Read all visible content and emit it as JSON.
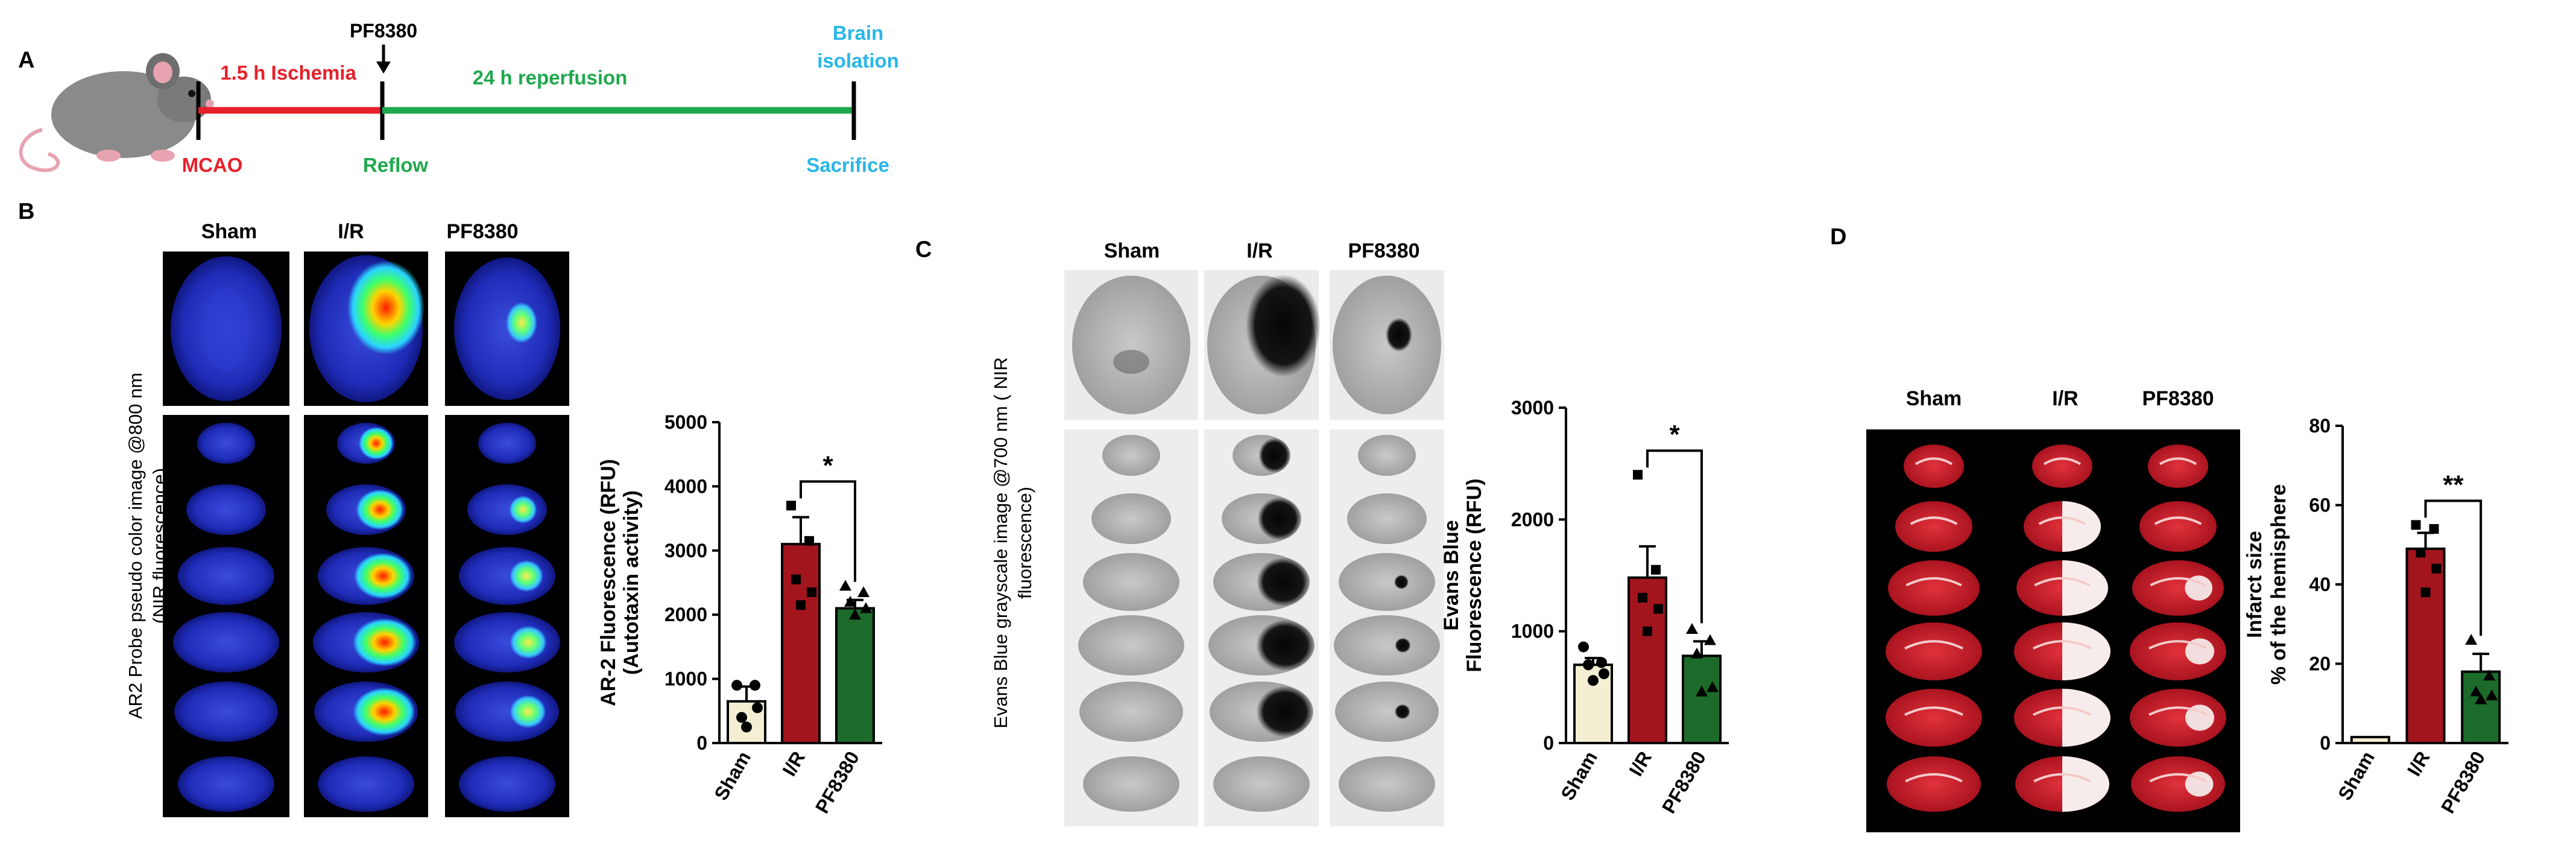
{
  "panel_letters": {
    "a": "A",
    "b": "B",
    "c": "C",
    "d": "D"
  },
  "timeline": {
    "drug_label": "PF8380",
    "ischemia_label": "1.5 h Ischemia",
    "reperfusion_label": "24 h reperfusion",
    "brain_isolation_line1": "Brain",
    "brain_isolation_line2": "isolation",
    "mcao_label": "MCAO",
    "reflow_label": "Reflow",
    "sacrifice_label": "Sacrifice",
    "colors": {
      "ischemia": "#e8202a",
      "reperfusion": "#1fa84c",
      "endpoint": "#29b6e8"
    }
  },
  "panel_b": {
    "groups": [
      "Sham",
      "I/R",
      "PF8380"
    ],
    "image_caption_line1": "AR2 Probe pseudo color image @800 nm",
    "image_caption_line2": "(NIR fluorescence)"
  },
  "panel_c": {
    "groups": [
      "Sham",
      "I/R",
      "PF8380"
    ],
    "image_caption_line1": "Evans Blue  grayscale image @700 nm ( NIR",
    "image_caption_line2": "fluorescence)"
  },
  "panel_d": {
    "groups": [
      "Sham",
      "I/R",
      "PF8380"
    ]
  },
  "chart_data": [
    {
      "type": "bar",
      "panel": "B",
      "categories": [
        "Sham",
        "I/R",
        "PF8380"
      ],
      "values": [
        650,
        3100,
        2100
      ],
      "errors": [
        230,
        420,
        130
      ],
      "points": [
        [
          900,
          900,
          400,
          550,
          250
        ],
        [
          3700,
          3150,
          2550,
          2350,
          2150
        ],
        [
          2450,
          2350,
          2200,
          2100,
          2000
        ]
      ],
      "ylabel_line1": "AR-2 Fluorescence (RFU)",
      "ylabel_line2": "(Autotaxin activity)",
      "ylim": [
        0,
        5000
      ],
      "yticks": [
        "0",
        "1000",
        "2000",
        "3000",
        "4000",
        "5000"
      ],
      "significance": "*",
      "colors": [
        "#f4efd2",
        "#a3151c",
        "#1c6b2a"
      ]
    },
    {
      "type": "bar",
      "panel": "C",
      "categories": [
        "Sham",
        "I/R",
        "PF8380"
      ],
      "values": [
        700,
        1480,
        780
      ],
      "errors": [
        60,
        280,
        130
      ],
      "points": [
        [
          860,
          720,
          700,
          620,
          560
        ],
        [
          2400,
          1550,
          1300,
          1200,
          1000
        ],
        [
          1020,
          920,
          800,
          500,
          460
        ]
      ],
      "ylabel_line1": "Evans Blue",
      "ylabel_line2": "Fluorescence (RFU)",
      "ylim": [
        0,
        3000
      ],
      "yticks": [
        "0",
        "1000",
        "2000",
        "3000"
      ],
      "significance": "*",
      "colors": [
        "#f4efd2",
        "#a3151c",
        "#1c6b2a"
      ]
    },
    {
      "type": "bar",
      "panel": "D",
      "categories": [
        "Sham",
        "I/R",
        "PF8380"
      ],
      "values": [
        1.5,
        49,
        18
      ],
      "errors": [
        0,
        4,
        4.5
      ],
      "points": [
        [],
        [
          55,
          54,
          48,
          44,
          38
        ],
        [
          26,
          17,
          13,
          12,
          11
        ]
      ],
      "ylabel_line1": "Infarct size",
      "ylabel_line2": "% of the hemisphere",
      "ylim": [
        0,
        80
      ],
      "yticks": [
        "0",
        "20",
        "40",
        "60",
        "80"
      ],
      "significance": "**",
      "colors": [
        "#f4efd2",
        "#a3151c",
        "#1c6b2a"
      ]
    }
  ]
}
